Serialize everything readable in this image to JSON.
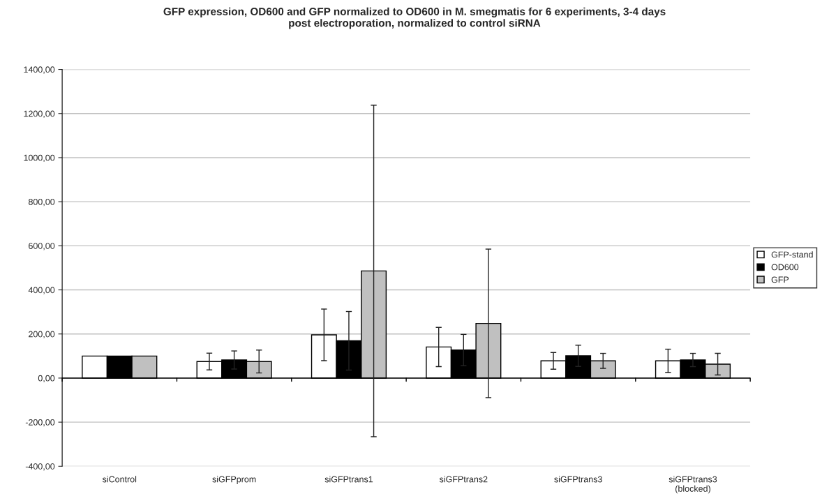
{
  "chart_data": {
    "type": "bar",
    "title": "GFP expression, OD600 and GFP normalized to OD600 in M. smegmatis for 6 experiments, 3-4 days\npost electroporation, normalized to control siRNA",
    "categories": [
      "siControl",
      "siGFPprom",
      "siGFPtrans1",
      "siGFPtrans2",
      "siGFPtrans3",
      "siGFPtrans3\n(blocked)"
    ],
    "series": [
      {
        "name": "GFP-stand",
        "color": "#ffffff",
        "values": [
          100,
          75,
          196,
          141,
          78,
          78
        ],
        "errors": [
          null,
          38,
          117,
          89,
          38,
          53
        ]
      },
      {
        "name": "OD600",
        "color": "#000000",
        "values": [
          100,
          82,
          169,
          127,
          101,
          82
        ],
        "errors": [
          null,
          41,
          133,
          71,
          48,
          30
        ]
      },
      {
        "name": "GFP",
        "color": "#c0c0c0",
        "values": [
          100,
          75,
          486,
          248,
          78,
          63
        ],
        "errors": [
          null,
          52,
          752,
          337,
          34,
          49
        ]
      }
    ],
    "ylim": [
      -400,
      1400
    ],
    "yticks": [
      {
        "value": -400,
        "label": "-400,00"
      },
      {
        "value": -200,
        "label": "-200,00"
      },
      {
        "value": 0,
        "label": "0,00"
      },
      {
        "value": 200,
        "label": "200,00"
      },
      {
        "value": 400,
        "label": "400,00"
      },
      {
        "value": 600,
        "label": "600,00"
      },
      {
        "value": 800,
        "label": "800,00"
      },
      {
        "value": 1000,
        "label": "1000,00"
      },
      {
        "value": 1200,
        "label": "1200,00"
      },
      {
        "value": 1400,
        "label": "1400,00"
      }
    ],
    "grid": "y",
    "legend": "right"
  }
}
